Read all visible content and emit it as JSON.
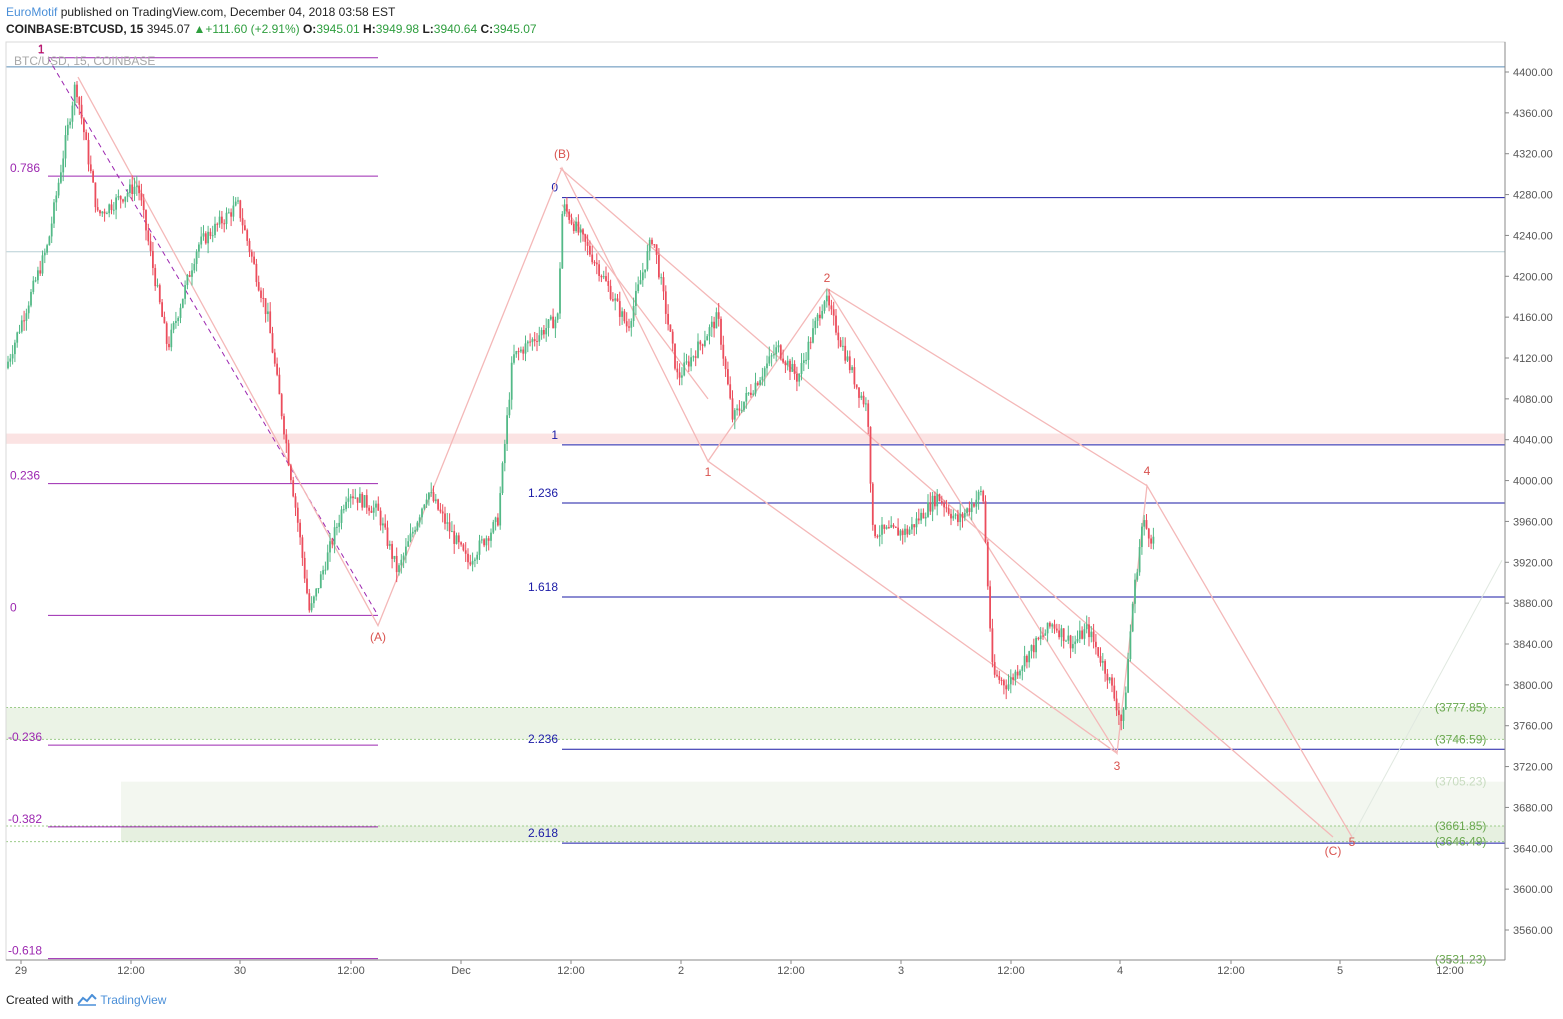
{
  "header": {
    "brand": "EuroMotif",
    "published": "published on TradingView.com, December 04, 2018 03:58 EST"
  },
  "ticker": {
    "symbol": "COINBASE:BTCUSD, 15",
    "last": "3945.07",
    "arrow": "▲",
    "change": "+111.60 (+2.91%)",
    "o_label": "O:",
    "o": "3945.01",
    "h_label": "H:",
    "h": "3949.98",
    "l_label": "L:",
    "l": "3940.64",
    "c_label": "C:",
    "c": "3945.07"
  },
  "watermark": "BTC/USD, 15, COINBASE",
  "footer": {
    "created": "Created with",
    "tv": "TradingView"
  },
  "colors": {
    "up": "#53b987",
    "down": "#eb4d5c",
    "fib_left": "#9c27b0",
    "fib_right": "#1a1aa6",
    "wave": "#f4b8b8",
    "wave_label": "#d9534f",
    "zone": "#e6f0e0",
    "zone_text": "#6aa84f"
  },
  "chart_data": {
    "type": "candlestick",
    "symbol": "COINBASE:BTCUSD",
    "interval": "15",
    "ylim": [
      3530,
      4430
    ],
    "yticks": [
      4400,
      4360,
      4320,
      4280,
      4240,
      4200,
      4160,
      4120,
      4080,
      4040,
      4000,
      3960,
      3920,
      3880,
      3840,
      3800,
      3760,
      3720,
      3680,
      3640,
      3600,
      3560
    ],
    "xticks": [
      "29",
      "12:00",
      "30",
      "12:00",
      "Dec",
      "12:00",
      "2",
      "12:00",
      "3",
      "12:00",
      "4",
      "12:00",
      "5",
      "12:00"
    ],
    "price_labels": [
      "3777.85",
      "3746.59",
      "3705.23",
      "3661.85",
      "3646.49",
      "3531.23"
    ],
    "fib_left": [
      {
        "level": "1",
        "price": 4414
      },
      {
        "level": "0.786",
        "price": 4298
      },
      {
        "level": "0.236",
        "price": 3997
      },
      {
        "level": "0",
        "price": 3868
      },
      {
        "level": "-0.236",
        "price": 3741
      },
      {
        "level": "-0.382",
        "price": 3661
      },
      {
        "level": "-0.618",
        "price": 3532
      }
    ],
    "fib_right": [
      {
        "level": "0",
        "price": 4277
      },
      {
        "level": "1",
        "price": 4035
      },
      {
        "level": "1.236",
        "price": 3978
      },
      {
        "level": "1.618",
        "price": 3886
      },
      {
        "level": "2.236",
        "price": 3737
      },
      {
        "level": "2.618",
        "price": 3645
      }
    ],
    "wave_labels": [
      "1",
      "(A)",
      "(B)",
      "1",
      "2",
      "3",
      "4",
      "5",
      "(C)"
    ]
  }
}
